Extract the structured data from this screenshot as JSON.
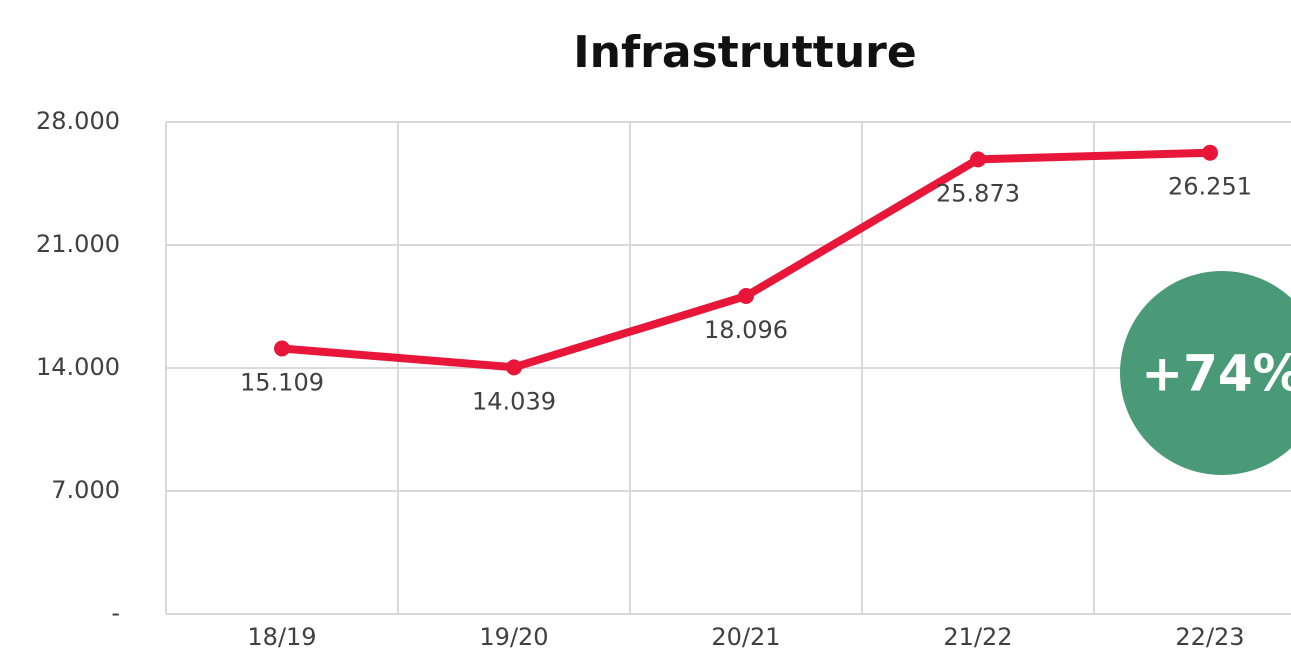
{
  "chart_data": {
    "type": "line",
    "title": "Infrastrutture",
    "categories": [
      "18/19",
      "19/20",
      "20/21",
      "21/22",
      "22/23"
    ],
    "values": [
      15109,
      14039,
      18096,
      25873,
      26251
    ],
    "value_labels": [
      "15.109",
      "14.039",
      "18.096",
      "25.873",
      "26.251"
    ],
    "color": "#e8173a",
    "ylim": [
      0,
      28000
    ],
    "yticks": [
      {
        "value": 0,
        "label": "-"
      },
      {
        "value": 7000,
        "label": "7.000"
      },
      {
        "value": 14000,
        "label": "14.000"
      },
      {
        "value": 21000,
        "label": "21.000"
      },
      {
        "value": 28000,
        "label": "28.000"
      }
    ],
    "grid": true,
    "annotation": "+74%"
  }
}
